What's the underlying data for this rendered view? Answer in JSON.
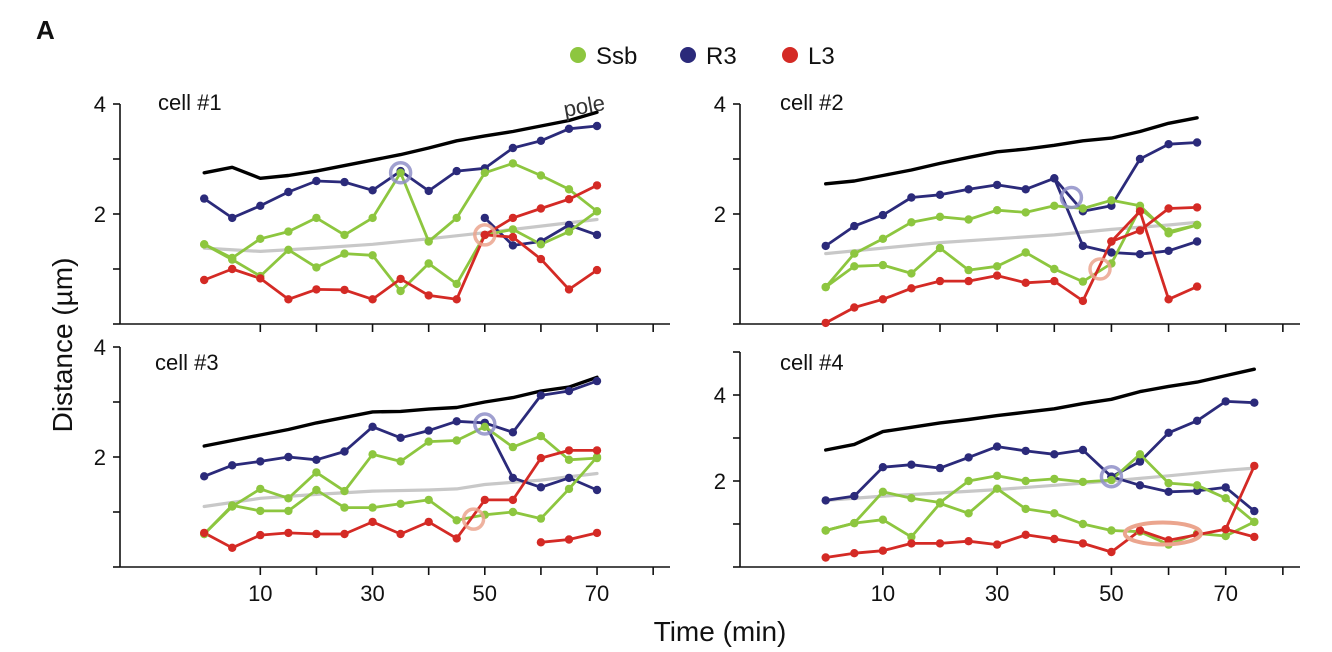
{
  "panel_label": "A",
  "legend": [
    {
      "label": "Ssb",
      "color": "#8dc63f"
    },
    {
      "label": "R3",
      "color": "#2b2a7a"
    },
    {
      "label": "L3",
      "color": "#d42a25"
    }
  ],
  "ylabel": "Distance (µm)",
  "xlabel": "Time (min)",
  "colors": {
    "pole": "#000000",
    "midcell": "#c8c8c8",
    "ssb": "#8dc63f",
    "r3": "#2b2a7a",
    "l3": "#d42a25",
    "circle_blue": "#8f8fc8",
    "circle_red": "#eba58e"
  },
  "chart_data": [
    {
      "type": "line",
      "title": "cell #1",
      "pole_label": "pole",
      "xlim": [
        -15,
        83
      ],
      "ylim": [
        0,
        4
      ],
      "xticks": [
        10,
        30,
        50,
        70
      ],
      "yticks": [
        0,
        1,
        2,
        3,
        4
      ],
      "ytick_labels": [
        "",
        "",
        "2",
        "",
        "4"
      ],
      "series": [
        {
          "key": "pole",
          "dots": false,
          "x": [
            0,
            5,
            10,
            15,
            20,
            25,
            30,
            35,
            40,
            45,
            50,
            55,
            60,
            65,
            70
          ],
          "y": [
            2.75,
            2.85,
            2.65,
            2.7,
            2.78,
            2.88,
            2.98,
            3.08,
            3.2,
            3.33,
            3.42,
            3.5,
            3.6,
            3.7,
            3.85
          ]
        },
        {
          "key": "midcell",
          "dots": false,
          "x": [
            0,
            10,
            20,
            30,
            40,
            50,
            60,
            70
          ],
          "y": [
            1.38,
            1.32,
            1.38,
            1.45,
            1.55,
            1.66,
            1.78,
            1.9
          ]
        },
        {
          "key": "r3",
          "dots": true,
          "x": [
            0,
            5,
            10,
            15,
            20,
            25,
            30,
            35,
            40,
            45,
            50,
            55,
            60,
            65,
            70
          ],
          "y": [
            2.28,
            1.93,
            2.15,
            2.4,
            2.6,
            2.58,
            2.43,
            2.78,
            2.42,
            2.78,
            2.83,
            3.2,
            3.33,
            3.55,
            3.6
          ]
        },
        {
          "key": "r3",
          "dots": true,
          "x": [
            50,
            55,
            60,
            65,
            70
          ],
          "y": [
            1.93,
            1.43,
            1.5,
            1.8,
            1.62
          ]
        },
        {
          "key": "ssb",
          "dots": true,
          "x": [
            0,
            5,
            10,
            15,
            20,
            25,
            30,
            35,
            40,
            45,
            50,
            55,
            60,
            65,
            70
          ],
          "y": [
            1.45,
            1.2,
            1.55,
            1.68,
            1.93,
            1.62,
            1.93,
            2.75,
            1.5,
            1.93,
            2.75,
            2.92,
            2.7,
            2.45,
            2.05
          ]
        },
        {
          "key": "ssb",
          "dots": true,
          "x": [
            0,
            5,
            10,
            15,
            20,
            25,
            30,
            35,
            40,
            45,
            50,
            55,
            60,
            65,
            70
          ],
          "y": [
            1.45,
            1.17,
            0.87,
            1.35,
            1.03,
            1.28,
            1.25,
            0.6,
            1.1,
            0.73,
            1.62,
            1.72,
            1.45,
            1.68,
            2.05
          ]
        },
        {
          "key": "l3",
          "dots": true,
          "x": [
            0,
            5,
            10,
            15,
            20,
            25,
            30,
            35,
            40,
            45,
            50,
            55,
            60,
            65,
            70
          ],
          "y": [
            0.8,
            1.0,
            0.83,
            0.45,
            0.63,
            0.62,
            0.45,
            0.82,
            0.52,
            0.45,
            1.62,
            1.93,
            2.1,
            2.27,
            2.52
          ]
        },
        {
          "key": "l3",
          "dots": true,
          "x": [
            50,
            55,
            60,
            65,
            70
          ],
          "y": [
            1.62,
            1.58,
            1.18,
            0.63,
            0.98
          ]
        }
      ],
      "markers": [
        {
          "key": "circle_blue",
          "x": 35,
          "y": 2.75
        },
        {
          "key": "circle_red",
          "x": 50,
          "y": 1.62
        }
      ]
    },
    {
      "type": "line",
      "title": "cell #2",
      "xlim": [
        -15,
        83
      ],
      "ylim": [
        0,
        4
      ],
      "xticks": [
        10,
        30,
        50,
        70
      ],
      "yticks": [
        0,
        1,
        2,
        3,
        4
      ],
      "ytick_labels": [
        "",
        "",
        "2",
        "",
        "4"
      ],
      "series": [
        {
          "key": "pole",
          "dots": false,
          "x": [
            0,
            5,
            10,
            15,
            20,
            25,
            30,
            35,
            40,
            45,
            50,
            55,
            60,
            65
          ],
          "y": [
            2.55,
            2.6,
            2.7,
            2.8,
            2.92,
            3.03,
            3.13,
            3.18,
            3.25,
            3.33,
            3.38,
            3.5,
            3.65,
            3.75
          ]
        },
        {
          "key": "midcell",
          "dots": false,
          "x": [
            0,
            10,
            20,
            30,
            40,
            50,
            60,
            65
          ],
          "y": [
            1.28,
            1.38,
            1.48,
            1.55,
            1.62,
            1.72,
            1.8,
            1.85
          ]
        },
        {
          "key": "r3",
          "dots": true,
          "x": [
            0,
            5,
            10,
            15,
            20,
            25,
            30,
            35,
            40,
            45,
            50,
            55,
            60,
            65
          ],
          "y": [
            1.42,
            1.78,
            1.98,
            2.3,
            2.35,
            2.45,
            2.53,
            2.45,
            2.65,
            2.05,
            2.15,
            3.0,
            3.27,
            3.3
          ]
        },
        {
          "key": "r3",
          "dots": true,
          "x": [
            40,
            45,
            50,
            55,
            60,
            65
          ],
          "y": [
            2.65,
            1.42,
            1.3,
            1.27,
            1.33,
            1.5
          ]
        },
        {
          "key": "ssb",
          "dots": true,
          "x": [
            0,
            5,
            10,
            15,
            20,
            25,
            30,
            35,
            40,
            45,
            50,
            55,
            60,
            65
          ],
          "y": [
            0.67,
            1.28,
            1.55,
            1.85,
            1.95,
            1.9,
            2.07,
            2.03,
            2.15,
            2.1,
            2.25,
            2.15,
            1.65,
            1.8
          ]
        },
        {
          "key": "ssb",
          "dots": true,
          "x": [
            0,
            5,
            10,
            15,
            20,
            25,
            30,
            35,
            40,
            45,
            50,
            55,
            60,
            65
          ],
          "y": [
            0.67,
            1.05,
            1.07,
            0.92,
            1.38,
            0.98,
            1.05,
            1.3,
            1.0,
            0.77,
            1.1,
            2.1,
            1.68,
            1.8
          ]
        },
        {
          "key": "l3",
          "dots": true,
          "x": [
            0,
            5,
            10,
            15,
            20,
            25,
            30,
            35,
            40,
            45,
            50,
            55,
            60,
            65
          ],
          "y": [
            0.02,
            0.3,
            0.45,
            0.65,
            0.78,
            0.78,
            0.88,
            0.75,
            0.78,
            0.42,
            1.5,
            1.7,
            2.1,
            2.12
          ]
        },
        {
          "key": "l3",
          "dots": true,
          "x": [
            50,
            55,
            60,
            65
          ],
          "y": [
            1.5,
            2.05,
            0.45,
            0.68
          ]
        }
      ],
      "markers": [
        {
          "key": "circle_blue",
          "x": 43,
          "y": 2.3
        },
        {
          "key": "circle_red",
          "x": 48,
          "y": 1.0
        }
      ]
    },
    {
      "type": "line",
      "title": "cell #3",
      "xlim": [
        -15,
        83
      ],
      "ylim": [
        0,
        4
      ],
      "xticks": [
        10,
        30,
        50,
        70
      ],
      "yticks": [
        0,
        1,
        2,
        3,
        4
      ],
      "ytick_labels": [
        "",
        "",
        "2",
        "",
        "4"
      ],
      "series": [
        {
          "key": "pole",
          "dots": false,
          "x": [
            0,
            5,
            10,
            15,
            20,
            25,
            30,
            35,
            40,
            45,
            50,
            55,
            60,
            65,
            70
          ],
          "y": [
            2.2,
            2.3,
            2.4,
            2.5,
            2.62,
            2.72,
            2.82,
            2.83,
            2.87,
            2.9,
            3.0,
            3.08,
            3.2,
            3.27,
            3.45
          ]
        },
        {
          "key": "midcell",
          "dots": false,
          "x": [
            0,
            10,
            20,
            30,
            40,
            45,
            50,
            60,
            70
          ],
          "y": [
            1.1,
            1.25,
            1.32,
            1.38,
            1.4,
            1.42,
            1.5,
            1.58,
            1.7
          ]
        },
        {
          "key": "r3",
          "dots": true,
          "x": [
            0,
            5,
            10,
            15,
            20,
            25,
            30,
            35,
            40,
            45,
            50,
            55,
            60,
            65,
            70
          ],
          "y": [
            1.65,
            1.85,
            1.92,
            2.0,
            1.95,
            2.1,
            2.55,
            2.35,
            2.48,
            2.65,
            2.62,
            2.45,
            3.12,
            3.2,
            3.38
          ]
        },
        {
          "key": "r3",
          "dots": true,
          "x": [
            50,
            55,
            60,
            65,
            70
          ],
          "y": [
            2.62,
            1.62,
            1.45,
            1.62,
            1.4
          ]
        },
        {
          "key": "ssb",
          "dots": true,
          "x": [
            0,
            5,
            10,
            15,
            20,
            25,
            30,
            35,
            40,
            45,
            50,
            55,
            60,
            65,
            70
          ],
          "y": [
            0.6,
            1.1,
            1.42,
            1.25,
            1.72,
            1.38,
            2.05,
            1.92,
            2.28,
            2.3,
            2.55,
            2.18,
            2.38,
            1.95,
            1.98
          ]
        },
        {
          "key": "ssb",
          "dots": true,
          "x": [
            0,
            5,
            10,
            15,
            20,
            25,
            30,
            35,
            40,
            45,
            50,
            55,
            60,
            65,
            70
          ],
          "y": [
            0.6,
            1.12,
            1.02,
            1.02,
            1.4,
            1.08,
            1.08,
            1.15,
            1.22,
            0.85,
            0.95,
            1.0,
            0.88,
            1.42,
            2.0
          ]
        },
        {
          "key": "l3",
          "dots": true,
          "x": [
            0,
            5,
            10,
            15,
            20,
            25,
            30,
            35,
            40,
            45,
            50,
            55,
            60,
            65,
            70
          ],
          "y": [
            0.62,
            0.35,
            0.58,
            0.62,
            0.6,
            0.6,
            0.82,
            0.6,
            0.82,
            0.52,
            1.22,
            1.22,
            1.98,
            2.12,
            2.12
          ]
        },
        {
          "key": "l3",
          "dots": true,
          "x": [
            60,
            65,
            70
          ],
          "y": [
            0.45,
            0.5,
            0.62
          ]
        }
      ],
      "markers": [
        {
          "key": "circle_blue",
          "x": 50,
          "y": 2.6
        },
        {
          "key": "circle_red",
          "x": 48,
          "y": 0.87
        }
      ]
    },
    {
      "type": "line",
      "title": "cell #4",
      "xlim": [
        -15,
        83
      ],
      "ylim": [
        0,
        5
      ],
      "xticks": [
        10,
        30,
        50,
        70
      ],
      "yticks": [
        0,
        1,
        2,
        3,
        4,
        5
      ],
      "ytick_labels": [
        "",
        "",
        "2",
        "",
        "4",
        ""
      ],
      "series": [
        {
          "key": "pole",
          "dots": false,
          "x": [
            0,
            5,
            10,
            15,
            20,
            25,
            30,
            35,
            40,
            45,
            50,
            55,
            60,
            65,
            70,
            75
          ],
          "y": [
            2.72,
            2.85,
            3.15,
            3.25,
            3.35,
            3.43,
            3.52,
            3.6,
            3.68,
            3.8,
            3.9,
            4.08,
            4.2,
            4.3,
            4.45,
            4.6
          ]
        },
        {
          "key": "midcell",
          "dots": false,
          "x": [
            0,
            10,
            20,
            30,
            40,
            50,
            60,
            70,
            75
          ],
          "y": [
            1.55,
            1.65,
            1.72,
            1.8,
            1.9,
            2.0,
            2.12,
            2.25,
            2.3
          ]
        },
        {
          "key": "r3",
          "dots": true,
          "x": [
            0,
            5,
            10,
            15,
            20,
            25,
            30,
            35,
            40,
            45,
            50,
            55,
            60,
            65,
            70,
            75
          ],
          "y": [
            1.55,
            1.65,
            2.32,
            2.38,
            2.3,
            2.55,
            2.8,
            2.7,
            2.62,
            2.72,
            2.1,
            2.45,
            3.12,
            3.4,
            3.85,
            3.82
          ]
        },
        {
          "key": "r3",
          "dots": true,
          "x": [
            50,
            55,
            60,
            65,
            70,
            75
          ],
          "y": [
            2.1,
            1.9,
            1.75,
            1.77,
            1.85,
            1.3
          ]
        },
        {
          "key": "ssb",
          "dots": true,
          "x": [
            0,
            5,
            10,
            15,
            20,
            25,
            30,
            35,
            40,
            45,
            50,
            55,
            60,
            65,
            70,
            75
          ],
          "y": [
            0.85,
            1.02,
            1.75,
            1.6,
            1.5,
            2.0,
            2.12,
            2.0,
            2.05,
            1.98,
            2.02,
            2.62,
            1.95,
            1.9,
            1.6,
            1.05
          ]
        },
        {
          "key": "ssb",
          "dots": true,
          "x": [
            0,
            5,
            10,
            15,
            20,
            25,
            30,
            35,
            40,
            45,
            50,
            55,
            60,
            65,
            70,
            75
          ],
          "y": [
            0.85,
            1.02,
            1.1,
            0.7,
            1.48,
            1.25,
            1.82,
            1.35,
            1.25,
            1.0,
            0.85,
            0.82,
            0.52,
            0.78,
            0.72,
            1.05
          ]
        },
        {
          "key": "l3",
          "dots": true,
          "x": [
            0,
            5,
            10,
            15,
            20,
            25,
            30,
            35,
            40,
            45,
            50,
            55,
            60,
            65,
            70,
            75
          ],
          "y": [
            0.22,
            0.32,
            0.38,
            0.55,
            0.55,
            0.6,
            0.52,
            0.75,
            0.65,
            0.55,
            0.35,
            0.85,
            0.62,
            0.75,
            0.88,
            2.35
          ]
        },
        {
          "key": "l3",
          "dots": true,
          "x": [
            70,
            75
          ],
          "y": [
            0.88,
            0.7
          ]
        }
      ],
      "markers": [
        {
          "key": "circle_blue",
          "x": 50,
          "y": 2.1
        },
        {
          "key": "ellipse_red",
          "x": 59,
          "y": 0.78
        }
      ]
    }
  ]
}
